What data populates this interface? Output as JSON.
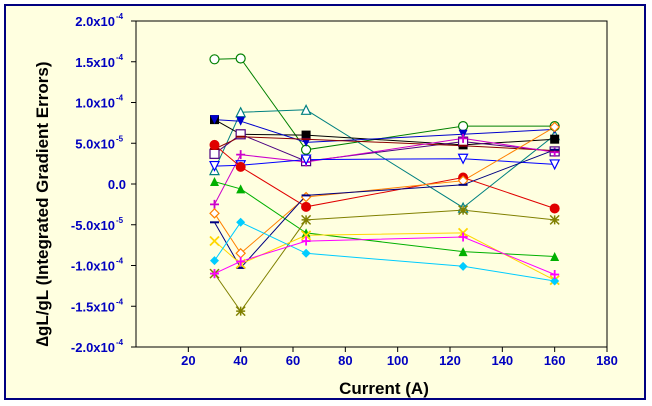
{
  "chart_data": {
    "type": "line",
    "title": "",
    "xlabel": "Current (A)",
    "ylabel": "∆gL/gL (Integrated Gradient Errors)",
    "xlim": [
      0,
      180
    ],
    "ylim": [
      -0.0002,
      0.0002
    ],
    "x_ticks": [
      20,
      40,
      60,
      80,
      100,
      120,
      140,
      160,
      180
    ],
    "x_tick_labels": [
      "20",
      "40",
      "60",
      "80",
      "100",
      "120",
      "140",
      "160",
      "180"
    ],
    "y_ticks": [
      -0.0002,
      -0.00015,
      -0.0001,
      -5e-05,
      0,
      5e-05,
      0.0001,
      0.00015,
      0.0002
    ],
    "y_tick_labels": [
      {
        "mantissa": "-2.0x10",
        "exp": "-4"
      },
      {
        "mantissa": "-1.5x10",
        "exp": "-4"
      },
      {
        "mantissa": "-1.0x10",
        "exp": "-4"
      },
      {
        "mantissa": "-5.0x10",
        "exp": "-5"
      },
      {
        "mantissa": "0.0",
        "exp": ""
      },
      {
        "mantissa": "5.0x10",
        "exp": "-5"
      },
      {
        "mantissa": "1.0x10",
        "exp": "-4"
      },
      {
        "mantissa": "1.5x10",
        "exp": "-4"
      },
      {
        "mantissa": "2.0x10",
        "exp": "-4"
      }
    ],
    "x": [
      30,
      40,
      65,
      125,
      160
    ],
    "grid": false,
    "legend": "none",
    "series": [
      {
        "color": "#008000",
        "marker": "circle-open",
        "values": [
          0.000153,
          0.000154,
          4.2e-05,
          7.1e-05,
          7.1e-05
        ]
      },
      {
        "color": "#008080",
        "marker": "triangle-open",
        "values": [
          1.7e-05,
          8.8e-05,
          9.1e-05,
          -2.9e-05,
          6e-05
        ]
      },
      {
        "color": "#000000",
        "marker": "square-filled",
        "values": [
          7.9e-05,
          6.1e-05,
          6e-05,
          4.8e-05,
          5.5e-05
        ]
      },
      {
        "color": "#0000cd",
        "marker": "triangle-down-filled",
        "values": [
          7.9e-05,
          7.7e-05,
          5.1e-05,
          6.1e-05,
          6.7e-05
        ]
      },
      {
        "color": "#4b0082",
        "marker": "square-open",
        "values": [
          3.7e-05,
          6.1e-05,
          2.8e-05,
          5.2e-05,
          4e-05
        ]
      },
      {
        "color": "#8b0000",
        "marker": "dash",
        "values": [
          4.3e-05,
          5.8e-05,
          5.5e-05,
          4.7e-05,
          4.1e-05
        ]
      },
      {
        "color": "#cc00cc",
        "marker": "plus",
        "values": [
          -2.5e-05,
          3.6e-05,
          2.7e-05,
          5.6e-05,
          3.9e-05
        ]
      },
      {
        "color": "#0000ff",
        "marker": "triangle-down-open",
        "values": [
          2.2e-05,
          2.3e-05,
          3e-05,
          3.1e-05,
          2.4e-05
        ]
      },
      {
        "color": "#e00000",
        "marker": "circle-filled",
        "values": [
          4.8e-05,
          2.1e-05,
          -2.8e-05,
          8e-06,
          -3e-05
        ]
      },
      {
        "color": "#ff8000",
        "marker": "diamond-open",
        "values": [
          -3.6e-05,
          -8.5e-05,
          -1.6e-05,
          4e-06,
          7e-05
        ]
      },
      {
        "color": "#00b000",
        "marker": "triangle-filled",
        "values": [
          3e-06,
          -6e-06,
          -6e-05,
          -8.3e-05,
          -8.9e-05
        ]
      },
      {
        "color": "#808000",
        "marker": "asterisk",
        "values": [
          -0.00011,
          -0.000156,
          -4.4e-05,
          -3.2e-05,
          -4.4e-05
        ]
      },
      {
        "color": "#000080",
        "marker": "dash",
        "values": [
          -4.7e-05,
          -0.000103,
          -1.4e-05,
          -1e-06,
          4.2e-05
        ]
      },
      {
        "color": "#ffd700",
        "marker": "cross",
        "values": [
          -7e-05,
          -9.8e-05,
          -6.3e-05,
          -6e-05,
          -0.000118
        ]
      },
      {
        "color": "#00ccff",
        "marker": "diamond-filled",
        "values": [
          -9.4e-05,
          -4.7e-05,
          -8.5e-05,
          -0.000101,
          -0.000119
        ]
      },
      {
        "color": "#ff00ff",
        "marker": "plus",
        "values": [
          -0.00011,
          -9.5e-05,
          -7e-05,
          -6.5e-05,
          -0.000111
        ]
      }
    ]
  }
}
